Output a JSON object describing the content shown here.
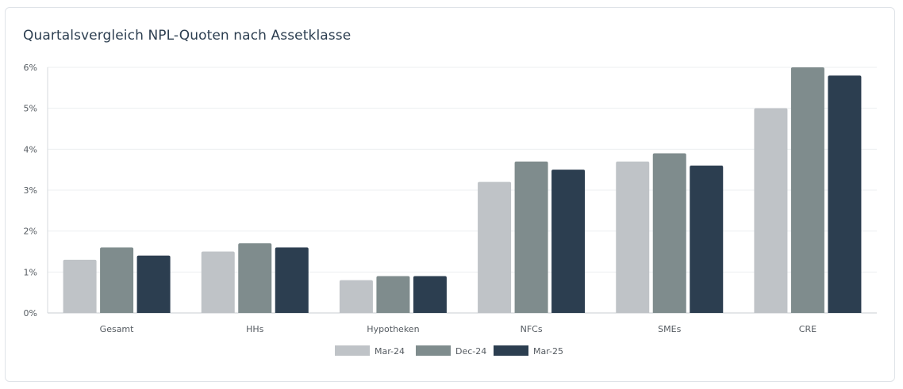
{
  "chart_data": {
    "type": "bar",
    "title": "Quartalsvergleich NPL-Quoten nach Assetklasse",
    "categories": [
      "Gesamt",
      "HHs",
      "Hypotheken",
      "NFCs",
      "SMEs",
      "CRE"
    ],
    "series": [
      {
        "name": "Mar-24",
        "color": "#bfc3c7",
        "values": [
          1.3,
          1.5,
          0.8,
          3.2,
          3.7,
          5.0
        ]
      },
      {
        "name": "Dec-24",
        "color": "#7f8c8d",
        "values": [
          1.6,
          1.7,
          0.9,
          3.7,
          3.9,
          6.0
        ]
      },
      {
        "name": "Mar-25",
        "color": "#2c3e50",
        "values": [
          1.4,
          1.6,
          0.9,
          3.5,
          3.6,
          5.8
        ]
      }
    ],
    "ylim": [
      0,
      6
    ],
    "yticks": [
      "0%",
      "1%",
      "2%",
      "3%",
      "4%",
      "5%",
      "6%"
    ],
    "xlabel": "",
    "ylabel": "",
    "grid": true,
    "legend_position": "bottom"
  }
}
